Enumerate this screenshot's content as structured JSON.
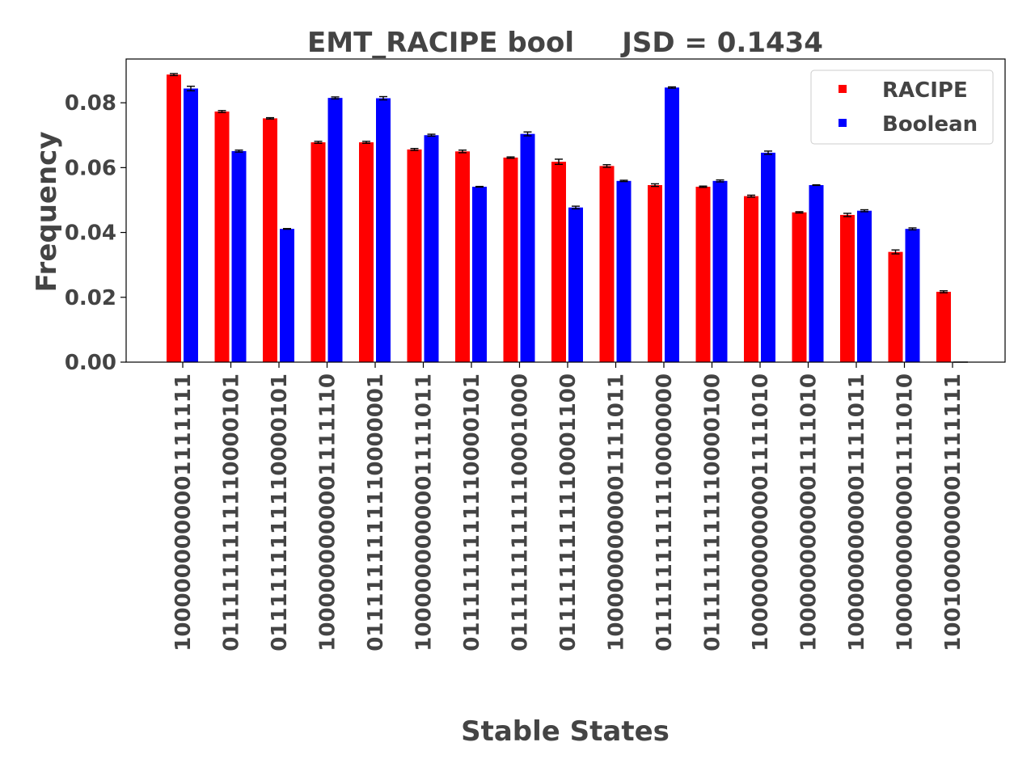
{
  "chart_data": {
    "type": "bar",
    "title": "EMT_RACIPE bool     JSD = 0.1434",
    "xlabel": "Stable States",
    "ylabel": "Frequency",
    "ylim": [
      0,
      0.0935
    ],
    "yticks": [
      "0.00",
      "0.02",
      "0.04",
      "0.06",
      "0.08"
    ],
    "grid": false,
    "legend_position": "top-right",
    "categories": [
      "1000000000001111111",
      "0111111111110000101",
      "0111111111110000101",
      "1000000000001111110",
      "0111111111110000001",
      "1000000000001111011",
      "0111111111110000101",
      "0111111111110001000",
      "0111111111110001100",
      "1000000000001111011",
      "0111111111110000000",
      "0111111111110000100",
      "1000000000001111010",
      "1000000000001111010",
      "1000000000001111011",
      "1000000000001111010",
      "1001000000001111111"
    ],
    "series": [
      {
        "name": "RACIPE",
        "color": "#ff0000",
        "values": [
          0.0887,
          0.0773,
          0.0752,
          0.0678,
          0.0678,
          0.0656,
          0.065,
          0.0631,
          0.0618,
          0.0605,
          0.0546,
          0.0541,
          0.0512,
          0.0462,
          0.0454,
          0.034,
          0.0217
        ],
        "errors": [
          0.0003,
          0.0003,
          0.0002,
          0.0003,
          0.0003,
          0.0003,
          0.0004,
          0.0002,
          0.0008,
          0.0004,
          0.0004,
          0.0002,
          0.0003,
          0.0002,
          0.0005,
          0.0006,
          0.0003
        ]
      },
      {
        "name": "Boolean",
        "color": "#0000ff",
        "values": [
          0.0844,
          0.0651,
          0.0411,
          0.0815,
          0.0814,
          0.07,
          0.0541,
          0.0704,
          0.0477,
          0.0559,
          0.0847,
          0.0559,
          0.0646,
          0.0546,
          0.0467,
          0.0411,
          0.0
        ],
        "errors": [
          0.0007,
          0.0003,
          0.0001,
          0.0003,
          0.0005,
          0.0003,
          0.0001,
          0.0006,
          0.0004,
          0.0002,
          0.0002,
          0.0003,
          0.0005,
          0.0001,
          0.0003,
          0.0003,
          0.0
        ]
      }
    ]
  }
}
